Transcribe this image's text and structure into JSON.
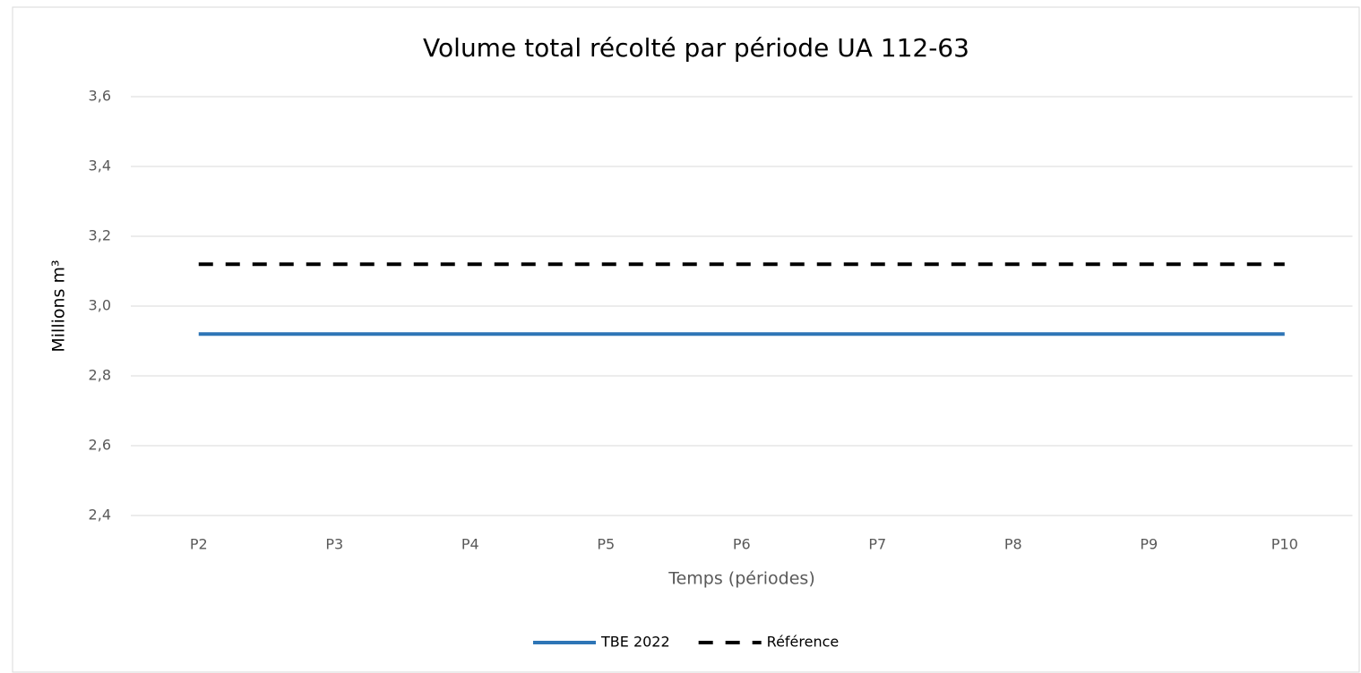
{
  "chart_data": {
    "type": "line",
    "title": "Volume total récolté par période UA 112-63",
    "x_label": "Temps (périodes)",
    "y_label": "Millions m³",
    "categories": [
      "P2",
      "P3",
      "P4",
      "P5",
      "P6",
      "P7",
      "P8",
      "P9",
      "P10"
    ],
    "series": [
      {
        "name": "TBE 2022",
        "color": "#2e75b6",
        "dashed": false,
        "values": [
          2.92,
          2.92,
          2.92,
          2.92,
          2.92,
          2.92,
          2.92,
          2.92,
          2.92
        ]
      },
      {
        "name": "Référence",
        "color": "#000000",
        "dashed": true,
        "values": [
          3.12,
          3.12,
          3.12,
          3.12,
          3.12,
          3.12,
          3.12,
          3.12,
          3.12
        ]
      }
    ],
    "ylim": [
      2.4,
      3.6
    ],
    "yticks": [
      {
        "value": 2.4,
        "label": "2,4"
      },
      {
        "value": 2.6,
        "label": "2,6"
      },
      {
        "value": 2.8,
        "label": "2,8"
      },
      {
        "value": 3.0,
        "label": "3,0"
      },
      {
        "value": 3.2,
        "label": "3,2"
      },
      {
        "value": 3.4,
        "label": "3,4"
      },
      {
        "value": 3.6,
        "label": "3,6"
      }
    ],
    "grid": true,
    "legend": "bottom"
  }
}
